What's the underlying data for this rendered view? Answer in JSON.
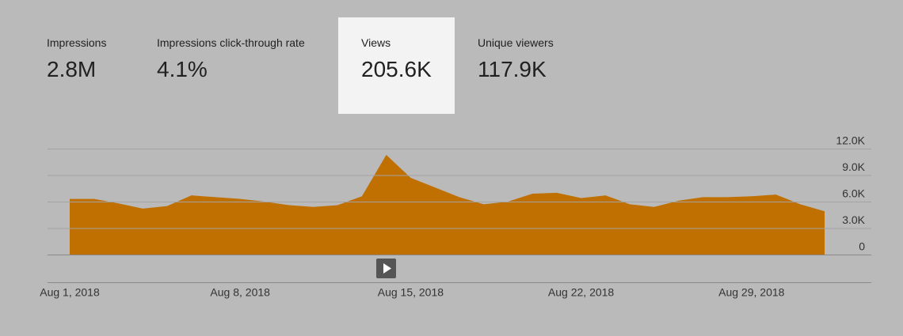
{
  "metrics": [
    {
      "label": "Impressions",
      "value": "2.8M"
    },
    {
      "label": "Impressions click-through rate",
      "value": "4.1%"
    },
    {
      "label": "Views",
      "value": "205.6K"
    },
    {
      "label": "Unique viewers",
      "value": "117.9K"
    }
  ],
  "chart_data": {
    "type": "area",
    "color": "#bf7000",
    "categories": [
      "Aug 1, 2018",
      null,
      null,
      null,
      null,
      null,
      null,
      "Aug 8, 2018",
      null,
      null,
      null,
      null,
      null,
      null,
      "Aug 15, 2018",
      null,
      null,
      null,
      null,
      null,
      null,
      "Aug 22, 2018",
      null,
      null,
      null,
      null,
      null,
      null,
      "Aug 29, 2018",
      null,
      null,
      null
    ],
    "values": [
      6300,
      6300,
      5800,
      5200,
      5500,
      6700,
      6500,
      6300,
      6000,
      5600,
      5400,
      5600,
      6600,
      11300,
      8700,
      7600,
      6500,
      5700,
      6000,
      6900,
      7000,
      6400,
      6700,
      5700,
      5400,
      6100,
      6500,
      6500,
      6600,
      6800,
      5700,
      4900
    ],
    "ylim": [
      0,
      12000
    ],
    "yticks": [
      0,
      {
        "value": 3000,
        "label": "3.0K"
      },
      {
        "value": 6000,
        "label": "6.0K"
      },
      {
        "value": 9000,
        "label": "9.0K"
      },
      {
        "value": 12000,
        "label": "12.0K"
      }
    ],
    "grid": true
  }
}
